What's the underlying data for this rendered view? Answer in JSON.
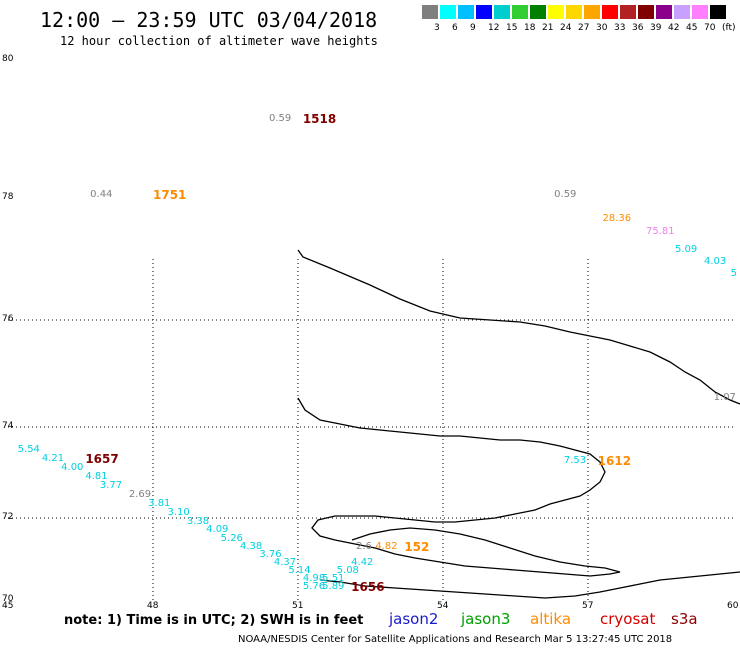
{
  "title": "12:00 – 23:59 UTC 03/04/2018",
  "subtitle": "12 hour collection of altimeter wave heights",
  "note": "note: 1) Time is in UTC; 2) SWH is in feet",
  "footer": "NOAA/NESDIS Center for Satellite Applications and Research   Mar  5 13:27:45 UTC 2018",
  "satellites": [
    {
      "label": "jason2",
      "color": "#1a1acc"
    },
    {
      "label": "jason3",
      "color": "#00a000"
    },
    {
      "label": "altika",
      "color": "#ff8c00"
    },
    {
      "label": "cryosat",
      "color": "#d40000"
    },
    {
      "label": "s3a",
      "color": "#8b0000"
    }
  ],
  "color_scale": {
    "colors": [
      "#7f7f7f",
      "#00ffff",
      "#00bfff",
      "#0000ff",
      "#00cdcd",
      "#32cd32",
      "#008000",
      "#ffff00",
      "#ffd700",
      "#ffa500",
      "#ff0000",
      "#b22222",
      "#800000",
      "#8b008b",
      "#c8a0ff",
      "#ff80ff",
      "#000000"
    ],
    "labels": [
      "3",
      "6",
      "9",
      "12",
      "15",
      "18",
      "21",
      "24",
      "27",
      "30",
      "33",
      "36",
      "39",
      "42",
      "45",
      "70",
      "(ft)"
    ]
  },
  "lat_ticks": [
    "80",
    "78",
    "76",
    "74",
    "72",
    "70"
  ],
  "lon_ticks": [
    "45",
    "48",
    "51",
    "54",
    "57",
    "60"
  ],
  "swh_labels": [
    {
      "text": "0.59",
      "color": "#808080",
      "lon": 50.4,
      "lat": 79.15
    },
    {
      "text": "0.44",
      "color": "#808080",
      "lon": 46.7,
      "lat": 78.05
    },
    {
      "text": "0.59",
      "color": "#808080",
      "lon": 56.3,
      "lat": 78.05
    },
    {
      "text": "28.36",
      "color": "#ff8c00",
      "lon": 57.3,
      "lat": 77.65
    },
    {
      "text": "75.81",
      "color": "#ee82ee",
      "lon": 58.2,
      "lat": 77.45
    },
    {
      "text": "5.09",
      "color": "#00d0e0",
      "lon": 58.8,
      "lat": 77.15
    },
    {
      "text": "4.03",
      "color": "#00d0e0",
      "lon": 59.4,
      "lat": 76.95
    },
    {
      "text": "5",
      "color": "#00d0e0",
      "lon": 59.95,
      "lat": 76.75
    },
    {
      "text": "1.07",
      "color": "#808080",
      "lon": 59.6,
      "lat": 74.55
    },
    {
      "text": "7.53",
      "color": "#00d0e0",
      "lon": 56.5,
      "lat": 73.25
    },
    {
      "text": "5.54",
      "color": "#00d0e0",
      "lon": 45.2,
      "lat": 73.5
    },
    {
      "text": "4.21",
      "color": "#00d0e0",
      "lon": 45.7,
      "lat": 73.3
    },
    {
      "text": "4.00",
      "color": "#00d0e0",
      "lon": 46.1,
      "lat": 73.1
    },
    {
      "text": "4.81",
      "color": "#00d0e0",
      "lon": 46.6,
      "lat": 72.9
    },
    {
      "text": "3.77",
      "color": "#00d0e0",
      "lon": 46.9,
      "lat": 72.7
    },
    {
      "text": "2.69",
      "color": "#808080",
      "lon": 47.5,
      "lat": 72.5
    },
    {
      "text": "3.81",
      "color": "#00d0e0",
      "lon": 47.9,
      "lat": 72.3
    },
    {
      "text": "3.10",
      "color": "#00d0e0",
      "lon": 48.3,
      "lat": 72.1
    },
    {
      "text": "3.38",
      "color": "#00d0e0",
      "lon": 48.7,
      "lat": 71.9
    },
    {
      "text": "4.09",
      "color": "#00d0e0",
      "lon": 49.1,
      "lat": 71.7
    },
    {
      "text": "5.26",
      "color": "#00d0e0",
      "lon": 49.4,
      "lat": 71.5
    },
    {
      "text": "4.38",
      "color": "#00d0e0",
      "lon": 49.8,
      "lat": 71.3
    },
    {
      "text": "3.76",
      "color": "#00d0e0",
      "lon": 50.2,
      "lat": 71.1
    },
    {
      "text": "4.37",
      "color": "#00d0e0",
      "lon": 50.5,
      "lat": 70.9
    },
    {
      "text": "5.14",
      "color": "#00d0e0",
      "lon": 50.8,
      "lat": 70.7
    },
    {
      "text": "4.42",
      "color": "#00d0e0",
      "lon": 52.1,
      "lat": 70.9
    },
    {
      "text": "5.08",
      "color": "#00d0e0",
      "lon": 51.8,
      "lat": 70.7
    },
    {
      "text": "4.98",
      "color": "#00d0e0",
      "lon": 51.1,
      "lat": 70.52
    },
    {
      "text": "5.51",
      "color": "#00d0e0",
      "lon": 51.5,
      "lat": 70.52
    },
    {
      "text": "5.76",
      "color": "#00d0e0",
      "lon": 51.1,
      "lat": 70.32
    },
    {
      "text": "5.89",
      "color": "#00d0e0",
      "lon": 51.5,
      "lat": 70.32
    },
    {
      "text": "2.6",
      "color": "#808080",
      "lon": 52.2,
      "lat": 71.3
    },
    {
      "text": "4.82",
      "color": "#ff8c00",
      "lon": 52.6,
      "lat": 71.3
    }
  ],
  "time_labels": [
    {
      "text": "1518",
      "color": "#800000",
      "lon": 51.1,
      "lat": 79.15
    },
    {
      "text": "1751",
      "color": "#ff8c00",
      "lon": 48.0,
      "lat": 78.05
    },
    {
      "text": "1657",
      "color": "#800000",
      "lon": 46.6,
      "lat": 73.3
    },
    {
      "text": "1612",
      "color": "#ff8c00",
      "lon": 57.2,
      "lat": 73.25
    },
    {
      "text": "1656",
      "color": "#800000",
      "lon": 52.1,
      "lat": 70.32
    },
    {
      "text": "152",
      "color": "#ff8c00",
      "lon": 53.2,
      "lat": 71.3
    }
  ]
}
